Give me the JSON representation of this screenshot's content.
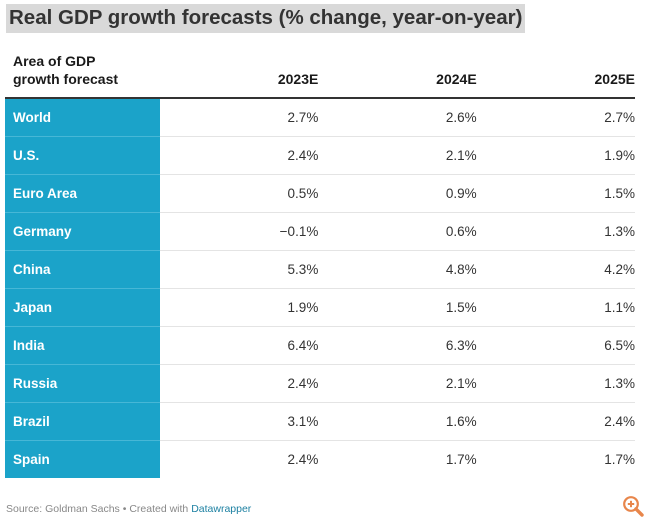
{
  "chart_data": {
    "type": "table",
    "title": "Real GDP growth forecasts (% change, year-on-year)",
    "columns": [
      "Area of GDP growth forecast",
      "2023E",
      "2024E",
      "2025E"
    ],
    "rows": [
      {
        "area": "World",
        "values": [
          "2.7%",
          "2.6%",
          "2.7%"
        ]
      },
      {
        "area": "U.S.",
        "values": [
          "2.4%",
          "2.1%",
          "1.9%"
        ]
      },
      {
        "area": "Euro Area",
        "values": [
          "0.5%",
          "0.9%",
          "1.5%"
        ]
      },
      {
        "area": "Germany",
        "values": [
          "−0.1%",
          "0.6%",
          "1.3%"
        ]
      },
      {
        "area": "China",
        "values": [
          "5.3%",
          "4.8%",
          "4.2%"
        ]
      },
      {
        "area": "Japan",
        "values": [
          "1.9%",
          "1.5%",
          "1.1%"
        ]
      },
      {
        "area": "India",
        "values": [
          "6.4%",
          "6.3%",
          "6.5%"
        ]
      },
      {
        "area": "Russia",
        "values": [
          "2.4%",
          "2.1%",
          "1.3%"
        ]
      },
      {
        "area": "Brazil",
        "values": [
          "3.1%",
          "1.6%",
          "2.4%"
        ]
      },
      {
        "area": "Spain",
        "values": [
          "2.4%",
          "1.7%",
          "1.7%"
        ]
      }
    ]
  },
  "header": {
    "area_line1": "Area of GDP",
    "area_line2": "growth forecast"
  },
  "footer": {
    "source": "Source: Goldman Sachs • Created with ",
    "tool": "Datawrapper"
  },
  "icons": {
    "zoom": "zoom-in-icon"
  },
  "colors": {
    "area_bg": "#1ba3c9",
    "zoom_icon": "#e8864b",
    "link": "#1d81a2"
  }
}
